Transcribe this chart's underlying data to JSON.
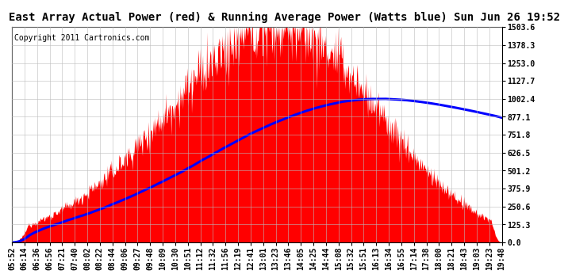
{
  "title": "East Array Actual Power (red) & Running Average Power (Watts blue) Sun Jun 26 19:52",
  "copyright": "Copyright 2011 Cartronics.com",
  "y_ticks": [
    0.0,
    125.3,
    250.6,
    375.9,
    501.2,
    626.5,
    751.8,
    877.1,
    1002.4,
    1127.7,
    1253.0,
    1378.3,
    1503.6
  ],
  "x_labels": [
    "05:52",
    "06:14",
    "06:36",
    "06:56",
    "07:21",
    "07:40",
    "08:02",
    "08:22",
    "08:44",
    "09:06",
    "09:27",
    "09:48",
    "10:09",
    "10:30",
    "10:51",
    "11:12",
    "11:32",
    "11:56",
    "12:19",
    "12:41",
    "13:01",
    "13:23",
    "13:46",
    "14:05",
    "14:25",
    "14:44",
    "15:08",
    "15:32",
    "15:51",
    "16:13",
    "16:34",
    "16:55",
    "17:14",
    "17:38",
    "18:00",
    "18:21",
    "18:43",
    "19:03",
    "19:23",
    "19:48"
  ],
  "actual_color": "#FF0000",
  "avg_color": "#0000FF",
  "bg_color": "#FFFFFF",
  "grid_color": "#BBBBBB",
  "title_fontsize": 10,
  "copyright_fontsize": 7,
  "tick_fontsize": 7,
  "ymax": 1503.6
}
